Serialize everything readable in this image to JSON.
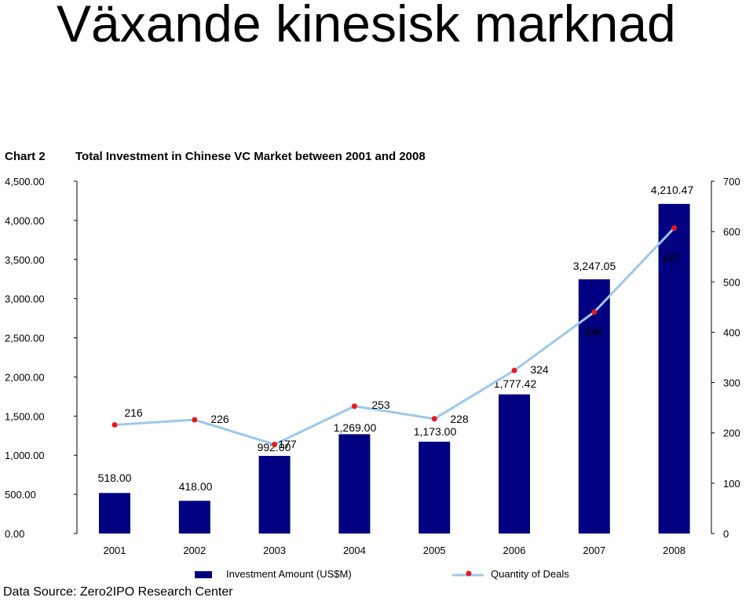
{
  "slide_title": "Växande kinesisk marknad",
  "chart_data": {
    "type": "bar",
    "chart_label": "Chart 2",
    "title": "Total Investment in Chinese VC Market between 2001 and 2008",
    "categories": [
      "2001",
      "2002",
      "2003",
      "2004",
      "2005",
      "2006",
      "2007",
      "2008"
    ],
    "series": [
      {
        "name": "Investment Amount (US$M)",
        "type": "bar",
        "axis": "left",
        "color": "#000080",
        "values": [
          518.0,
          418.0,
          992.0,
          1269.0,
          1173.0,
          1777.42,
          3247.05,
          4210.47
        ],
        "labels": [
          "518.00",
          "418.00",
          "992.00",
          "1,269.00",
          "1,173.00",
          "1,777.42",
          "3,247.05",
          "4,210.47"
        ]
      },
      {
        "name": "Quantity of Deals",
        "type": "line",
        "axis": "right",
        "line_color": "#9cc8ec",
        "marker_color": "#e8191c",
        "values": [
          216,
          226,
          177,
          253,
          228,
          324,
          440,
          607
        ],
        "labels": [
          "216",
          "226",
          "177",
          "253",
          "228",
          "324",
          "440",
          "607"
        ]
      }
    ],
    "y_left": {
      "ylim": [
        0,
        4500
      ],
      "ticks": [
        "0.00",
        "500.00",
        "1,000.00",
        "1,500.00",
        "2,000.00",
        "2,500.00",
        "3,000.00",
        "3,500.00",
        "4,000.00",
        "4,500.00"
      ]
    },
    "y_right": {
      "ylim": [
        0,
        700
      ],
      "ticks": [
        "0",
        "100",
        "200",
        "300",
        "400",
        "500",
        "600",
        "700"
      ]
    },
    "legend_position": "bottom",
    "grid": false,
    "source": "Data Source: Zero2IPO Research Center"
  }
}
